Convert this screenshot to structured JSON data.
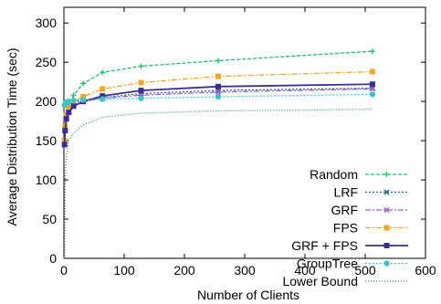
{
  "chart_data": {
    "type": "line",
    "title": "",
    "xlabel": "Number of Clients",
    "ylabel": "Average Distribution Time (sec)",
    "xlim": [
      0,
      600
    ],
    "ylim": [
      0,
      320
    ],
    "x_ticks": [
      "0",
      "100",
      "200",
      "300",
      "400",
      "500",
      "600"
    ],
    "y_ticks": [
      "0",
      "50",
      "100",
      "150",
      "200",
      "250",
      "300"
    ],
    "grid": false,
    "legend_position": "bottom-right",
    "series": [
      {
        "name": "Random",
        "color": "#1fbf73",
        "dash": "4,2",
        "marker": "plus",
        "points": [
          [
            1,
            150
          ],
          [
            2,
            160
          ],
          [
            4,
            175
          ],
          [
            8,
            195
          ],
          [
            16,
            208
          ],
          [
            32,
            223
          ],
          [
            64,
            237
          ],
          [
            128,
            245
          ],
          [
            256,
            252
          ],
          [
            512,
            264
          ]
        ]
      },
      {
        "name": "LRF",
        "color": "#1f6f70",
        "dash": "2,2",
        "marker": "x",
        "points": [
          [
            1,
            150
          ],
          [
            2,
            165
          ],
          [
            4,
            180
          ],
          [
            8,
            190
          ],
          [
            16,
            198
          ],
          [
            32,
            202
          ],
          [
            64,
            205
          ],
          [
            128,
            210
          ],
          [
            256,
            214
          ],
          [
            512,
            217
          ]
        ]
      },
      {
        "name": "GRF",
        "color": "#a15bd6",
        "dash": "6,2,2,2",
        "marker": "x",
        "points": [
          [
            1,
            150
          ],
          [
            2,
            165
          ],
          [
            4,
            180
          ],
          [
            8,
            188
          ],
          [
            16,
            195
          ],
          [
            32,
            200
          ],
          [
            64,
            204
          ],
          [
            128,
            208
          ],
          [
            256,
            212
          ],
          [
            512,
            216
          ]
        ]
      },
      {
        "name": "FPS",
        "color": "#f5a623",
        "dash": "6,2,2,2",
        "marker": "square",
        "points": [
          [
            1,
            150
          ],
          [
            2,
            168
          ],
          [
            4,
            183
          ],
          [
            8,
            192
          ],
          [
            16,
            200
          ],
          [
            32,
            206
          ],
          [
            64,
            216
          ],
          [
            128,
            224
          ],
          [
            256,
            232
          ],
          [
            512,
            238
          ]
        ]
      },
      {
        "name": "GRF + FPS",
        "color": "#3d2d8f",
        "dash": "",
        "marker": "square",
        "points": [
          [
            1,
            145
          ],
          [
            2,
            163
          ],
          [
            4,
            178
          ],
          [
            8,
            186
          ],
          [
            16,
            194
          ],
          [
            32,
            200
          ],
          [
            64,
            207
          ],
          [
            128,
            214
          ],
          [
            256,
            219
          ],
          [
            512,
            222
          ]
        ]
      },
      {
        "name": "GroupTree",
        "color": "#3cc6c9",
        "dash": "2,2",
        "marker": "circle",
        "points": [
          [
            1,
            195
          ],
          [
            2,
            197
          ],
          [
            4,
            199
          ],
          [
            8,
            200
          ],
          [
            16,
            201
          ],
          [
            32,
            202
          ],
          [
            64,
            203
          ],
          [
            128,
            204
          ],
          [
            256,
            206
          ],
          [
            512,
            209
          ]
        ]
      },
      {
        "name": "Lower Bound",
        "color": "#2e8b7a",
        "dash": "1,2",
        "marker": "none",
        "points": [
          [
            1,
            0
          ],
          [
            2,
            100
          ],
          [
            4,
            130
          ],
          [
            8,
            150
          ],
          [
            16,
            160
          ],
          [
            32,
            170
          ],
          [
            64,
            180
          ],
          [
            128,
            185
          ],
          [
            256,
            188
          ],
          [
            512,
            190
          ]
        ]
      }
    ]
  }
}
